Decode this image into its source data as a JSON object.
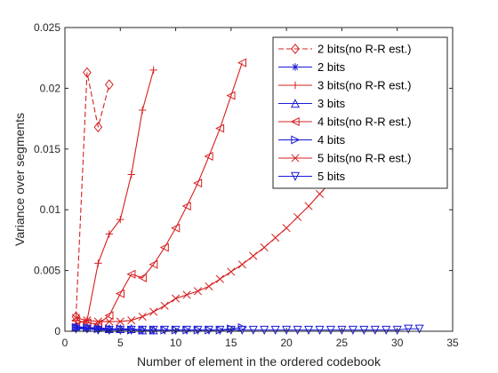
{
  "chart_data": {
    "type": "line",
    "title": "",
    "xlabel": "Number of element in the ordered codebook",
    "ylabel": "Variance over segments",
    "xlim": [
      0,
      35
    ],
    "ylim": [
      0,
      0.025
    ],
    "xticks": [
      0,
      5,
      10,
      15,
      20,
      25,
      30,
      35
    ],
    "yticks": [
      0,
      0.005,
      0.01,
      0.015,
      0.02,
      0.025
    ],
    "xtick_labels": [
      "0",
      "5",
      "10",
      "15",
      "20",
      "25",
      "30",
      "35"
    ],
    "ytick_labels": [
      "0",
      "0.005",
      "0.01",
      "0.015",
      "0.02",
      "0.025"
    ],
    "grid": false,
    "legend_position": "top-right",
    "series": [
      {
        "name": "2 bits(no R-R est.)",
        "color": "#d62020",
        "dash": "dashed",
        "marker": "diamond",
        "x": [
          1,
          2,
          3,
          4
        ],
        "y": [
          0.0012,
          0.0213,
          0.0168,
          0.0203
        ]
      },
      {
        "name": "2 bits",
        "color": "#1a1ad6",
        "dash": "solid",
        "marker": "asterisk",
        "x": [
          1,
          2,
          3,
          4
        ],
        "y": [
          0.0003,
          0.0002,
          0.0002,
          0.0001
        ]
      },
      {
        "name": "3 bits(no R-R est.)",
        "color": "#d62020",
        "dash": "solid",
        "marker": "plus",
        "x": [
          1,
          2,
          3,
          4,
          5,
          6,
          7,
          8
        ],
        "y": [
          0.0006,
          0.0009,
          0.0056,
          0.008,
          0.0092,
          0.0129,
          0.0182,
          0.0215
        ]
      },
      {
        "name": "3 bits",
        "color": "#1a1ad6",
        "dash": "solid",
        "marker": "triangle-up",
        "x": [
          1,
          2,
          3,
          4,
          5,
          6,
          7,
          8
        ],
        "y": [
          0.0004,
          0.0003,
          0.0003,
          0.0002,
          0.0002,
          0.0002,
          0.0001,
          0.0001
        ]
      },
      {
        "name": "4 bits(no R-R est.)",
        "color": "#d62020",
        "dash": "solid",
        "marker": "triangle-left",
        "x": [
          1,
          2,
          3,
          4,
          5,
          6,
          7,
          8,
          9,
          10,
          11,
          12,
          13,
          14,
          15,
          16
        ],
        "y": [
          0.0009,
          0.0007,
          0.0006,
          0.0013,
          0.0031,
          0.0047,
          0.0044,
          0.0055,
          0.0069,
          0.0085,
          0.0103,
          0.0122,
          0.0144,
          0.0167,
          0.0194,
          0.0221
        ]
      },
      {
        "name": "4 bits",
        "color": "#1a1ad6",
        "dash": "solid",
        "marker": "triangle-right",
        "x": [
          1,
          2,
          3,
          4,
          5,
          6,
          7,
          8,
          9,
          10,
          11,
          12,
          13,
          14,
          15,
          16
        ],
        "y": [
          0.0003,
          0.0003,
          0.0002,
          0.0002,
          0.0002,
          0.0001,
          0.0001,
          0.0001,
          0.0001,
          0.0001,
          0.0001,
          0.0001,
          0.0001,
          0.0001,
          0.0002,
          0.0003
        ]
      },
      {
        "name": "5 bits(no R-R est.)",
        "color": "#d62020",
        "dash": "solid",
        "marker": "x",
        "x": [
          1,
          2,
          3,
          4,
          5,
          6,
          7,
          8,
          9,
          10,
          11,
          12,
          13,
          14,
          15,
          16,
          17,
          18,
          19,
          20,
          21,
          22,
          23,
          24,
          25,
          26,
          27,
          28,
          29,
          30,
          31,
          32
        ],
        "y": [
          0.0011,
          0.0009,
          0.0008,
          0.0008,
          0.0008,
          0.0009,
          0.0012,
          0.0016,
          0.0021,
          0.0027,
          0.003,
          0.0033,
          0.0037,
          0.0043,
          0.0049,
          0.0055,
          0.0062,
          0.0069,
          0.0077,
          0.0085,
          0.0094,
          0.0103,
          0.0113,
          0.0123,
          0.0134,
          0.0145,
          0.0157,
          0.0169,
          0.0182,
          0.0195,
          0.0208,
          0.0222
        ]
      },
      {
        "name": "5 bits",
        "color": "#1a1ad6",
        "dash": "solid",
        "marker": "triangle-down",
        "x": [
          1,
          2,
          3,
          4,
          5,
          6,
          7,
          8,
          9,
          10,
          11,
          12,
          13,
          14,
          15,
          16,
          17,
          18,
          19,
          20,
          21,
          22,
          23,
          24,
          25,
          26,
          27,
          28,
          29,
          30,
          31,
          32
        ],
        "y": [
          0.0002,
          0.0002,
          0.0001,
          0.0001,
          0.0001,
          0.0001,
          0.0001,
          0.0001,
          0.0001,
          0.0001,
          0.0001,
          0.0001,
          0.0001,
          0.0001,
          0.0001,
          0.0001,
          0.0001,
          0.0001,
          0.0001,
          0.0001,
          0.0001,
          0.0001,
          0.0001,
          0.0001,
          0.0001,
          0.0001,
          0.0001,
          0.0001,
          0.0001,
          0.0001,
          0.0002,
          0.0002
        ]
      }
    ]
  }
}
